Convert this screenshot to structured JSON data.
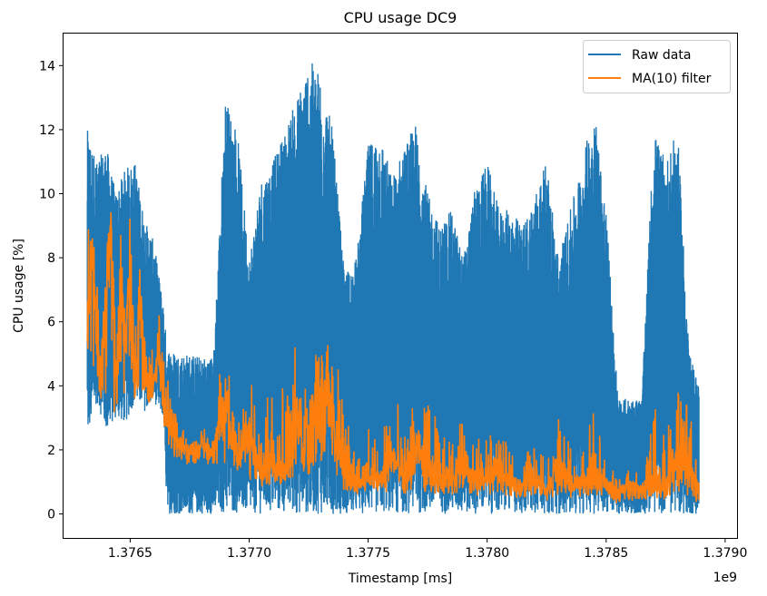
{
  "chart_data": {
    "type": "line",
    "title": "CPU usage DC9",
    "xlabel": "Timestamp [ms]",
    "ylabel": "CPU usage [%]",
    "x_offset_label": "1e9",
    "xlim": [
      1.37622,
      1.37905
    ],
    "ylim": [
      -0.75,
      15.0
    ],
    "x_ticks": [
      1.3765,
      1.377,
      1.3775,
      1.378,
      1.3785,
      1.379
    ],
    "x_tick_labels": [
      "1.3765",
      "1.3770",
      "1.3775",
      "1.3780",
      "1.3785",
      "1.3790"
    ],
    "y_ticks": [
      0,
      2,
      4,
      6,
      8,
      10,
      12,
      14
    ],
    "y_tick_labels": [
      "0",
      "2",
      "4",
      "6",
      "8",
      "10",
      "12",
      "14"
    ],
    "grid": false,
    "legend_position": "top-right",
    "series": [
      {
        "name": "Raw data",
        "color": "#1f77b4",
        "x": [
          1.37632,
          1.37636,
          1.3764,
          1.37644,
          1.37648,
          1.37652,
          1.37656,
          1.3766,
          1.37664,
          1.376655,
          1.3767,
          1.37675,
          1.3768,
          1.37685,
          1.3769,
          1.37695,
          1.377,
          1.37705,
          1.3771,
          1.37715,
          1.3772,
          1.37725,
          1.3773,
          1.37735,
          1.3774,
          1.37745,
          1.3775,
          1.37755,
          1.3776,
          1.37765,
          1.3777,
          1.37775,
          1.3778,
          1.37785,
          1.3779,
          1.37795,
          1.378,
          1.37805,
          1.3781,
          1.37815,
          1.3782,
          1.37825,
          1.3783,
          1.37835,
          1.3784,
          1.37845,
          1.3785,
          1.37855,
          1.3786,
          1.37865,
          1.3787,
          1.37875,
          1.3788,
          1.37885,
          1.37889
        ],
        "max": [
          12.0,
          11.0,
          11.5,
          10.0,
          10.8,
          11.0,
          9.2,
          8.5,
          6.5,
          5.2,
          5.0,
          5.0,
          4.9,
          4.9,
          13.0,
          12.0,
          8.0,
          10.5,
          11.0,
          12.0,
          13.0,
          14.2,
          13.8,
          12.0,
          7.5,
          8.0,
          11.5,
          12.0,
          10.5,
          11.5,
          12.2,
          10.0,
          9.0,
          9.5,
          8.0,
          10.2,
          11.0,
          9.5,
          9.5,
          9.0,
          10.0,
          11.0,
          8.0,
          9.5,
          11.0,
          12.8,
          9.5,
          3.6,
          3.6,
          3.6,
          12.0,
          11.0,
          12.0,
          5.0,
          4.0
        ],
        "min": [
          2.3,
          3.5,
          2.5,
          3.0,
          2.8,
          3.5,
          3.2,
          3.5,
          3.0,
          0,
          0,
          0,
          0,
          0,
          0,
          0,
          0,
          0,
          0,
          0,
          0,
          0,
          0,
          0,
          0,
          0,
          0,
          0,
          0,
          0,
          0,
          0,
          0,
          0,
          0,
          0,
          0,
          0,
          0,
          0,
          0,
          0,
          0,
          0,
          0,
          0,
          0,
          0,
          0,
          0,
          0,
          0,
          0,
          0,
          0
        ]
      },
      {
        "name": "MA(10) filter",
        "color": "#ff7f0e",
        "x": [
          1.37632,
          1.37634,
          1.37636,
          1.37638,
          1.3764,
          1.37642,
          1.37644,
          1.37646,
          1.37648,
          1.3765,
          1.37652,
          1.37654,
          1.37656,
          1.37658,
          1.3766,
          1.37662,
          1.37664,
          1.37666,
          1.37668,
          1.3767,
          1.37675,
          1.3768,
          1.37685,
          1.3769,
          1.37695,
          1.377,
          1.37705,
          1.3771,
          1.37715,
          1.3772,
          1.37725,
          1.3773,
          1.37735,
          1.3774,
          1.37745,
          1.3775,
          1.37755,
          1.3776,
          1.37765,
          1.3777,
          1.37775,
          1.3778,
          1.37785,
          1.3779,
          1.37795,
          1.378,
          1.37805,
          1.3781,
          1.37815,
          1.3782,
          1.37825,
          1.3783,
          1.37835,
          1.3784,
          1.37845,
          1.3785,
          1.37855,
          1.3786,
          1.37865,
          1.3787,
          1.37875,
          1.3788,
          1.37885,
          1.37889
        ],
        "y": [
          6.0,
          8.5,
          5.5,
          4.8,
          7.0,
          9.0,
          4.0,
          7.5,
          5.5,
          8.5,
          4.0,
          7.0,
          4.5,
          4.0,
          4.5,
          5.0,
          3.5,
          3.0,
          2.5,
          2.2,
          2.0,
          2.2,
          2.0,
          3.5,
          2.0,
          2.5,
          1.2,
          2.0,
          1.5,
          3.0,
          2.5,
          4.5,
          3.0,
          1.5,
          1.0,
          1.3,
          1.0,
          2.0,
          1.0,
          2.2,
          1.5,
          1.0,
          1.2,
          1.8,
          1.0,
          1.2,
          1.5,
          0.9,
          1.0,
          1.2,
          0.8,
          1.5,
          1.0,
          1.0,
          1.5,
          0.9,
          0.7,
          0.9,
          0.8,
          1.0,
          0.9,
          2.0,
          1.5,
          0.9
        ],
        "y_upper": [
          9.2,
          9.0,
          7.5,
          6.0,
          9.5,
          9.7,
          6.0,
          9.0,
          8.0,
          10.2,
          6.0,
          8.5,
          6.5,
          5.0,
          6.0,
          6.4,
          4.8,
          4.5,
          3.3,
          3.0,
          2.6,
          2.7,
          2.6,
          6.0,
          4.5,
          4.5,
          2.5,
          6.0,
          4.0,
          5.5,
          6.0,
          6.4,
          5.5,
          3.5,
          2.5,
          3.0,
          2.2,
          4.4,
          2.5,
          4.2,
          3.5,
          2.8,
          2.5,
          3.0,
          2.5,
          2.5,
          3.0,
          1.8,
          2.0,
          2.3,
          1.9,
          3.0,
          2.2,
          1.8,
          3.7,
          1.7,
          1.2,
          1.4,
          1.4,
          3.5,
          3.5,
          4.0,
          3.5,
          1.5
        ],
        "y_lower": [
          5.0,
          4.5,
          4.0,
          3.5,
          3.8,
          4.5,
          2.5,
          4.0,
          3.5,
          4.5,
          3.5,
          3.8,
          3.5,
          3.3,
          3.5,
          3.5,
          2.8,
          2.2,
          1.8,
          1.7,
          1.5,
          1.6,
          1.5,
          1.5,
          1.3,
          1.0,
          0.8,
          0.9,
          0.9,
          1.0,
          1.0,
          1.2,
          1.0,
          0.7,
          0.6,
          0.7,
          0.6,
          0.7,
          0.6,
          0.7,
          0.6,
          0.6,
          0.6,
          0.7,
          0.5,
          0.6,
          0.6,
          0.5,
          0.5,
          0.6,
          0.4,
          0.6,
          0.5,
          0.5,
          0.6,
          0.4,
          0.3,
          0.4,
          0.4,
          0.5,
          0.4,
          0.7,
          0.5,
          0.3
        ]
      }
    ]
  }
}
